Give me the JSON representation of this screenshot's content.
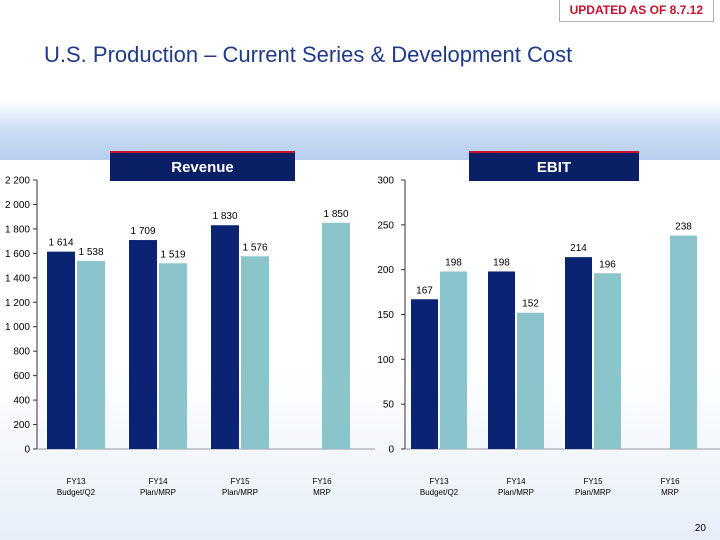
{
  "header": {
    "badge": "UPDATED AS OF 8.7.12",
    "title": "U.S. Production – Current Series & Development Cost"
  },
  "page_number": "20",
  "colors": {
    "dark": "#0a2373",
    "light": "#8cc4cc",
    "header": "#0a1f66",
    "accent": "#c8102e"
  },
  "chart_data": [
    {
      "type": "bar",
      "title": "Revenue",
      "categories": [
        [
          "FY13",
          "Budget/Q2"
        ],
        [
          "FY14",
          "Plan/MRP"
        ],
        [
          "FY15",
          "Plan/MRP"
        ],
        [
          "FY16",
          "MRP"
        ]
      ],
      "series": [
        {
          "role": "dark",
          "values": [
            1614,
            1709,
            1830,
            null
          ]
        },
        {
          "role": "light",
          "values": [
            1538,
            1519,
            1576,
            1850
          ]
        }
      ],
      "value_labels": [
        [
          "1 614",
          "1 709",
          "1 830",
          null
        ],
        [
          "1 538",
          "1 519",
          "1 576",
          "1 850"
        ]
      ],
      "yticks": [
        "0",
        "200",
        "400",
        "600",
        "800",
        "1 000",
        "1 200",
        "1 400",
        "1 600",
        "1 800",
        "2 000",
        "2 200"
      ],
      "ylim": [
        0,
        2200
      ],
      "xlabel": "",
      "ylabel": ""
    },
    {
      "type": "bar",
      "title": "EBIT",
      "categories": [
        [
          "FY13",
          "Budget/Q2"
        ],
        [
          "FY14",
          "Plan/MRP"
        ],
        [
          "FY15",
          "Plan/MRP"
        ],
        [
          "FY16",
          "MRP"
        ]
      ],
      "series": [
        {
          "role": "dark",
          "values": [
            167,
            198,
            214,
            null
          ]
        },
        {
          "role": "light",
          "values": [
            198,
            152,
            196,
            238
          ]
        }
      ],
      "value_labels": [
        [
          "167",
          "198",
          "214",
          null
        ],
        [
          "198",
          "152",
          "196",
          "238"
        ]
      ],
      "yticks": [
        "0",
        "50",
        "100",
        "150",
        "200",
        "250",
        "300"
      ],
      "ylim": [
        0,
        300
      ],
      "xlabel": "",
      "ylabel": ""
    }
  ]
}
